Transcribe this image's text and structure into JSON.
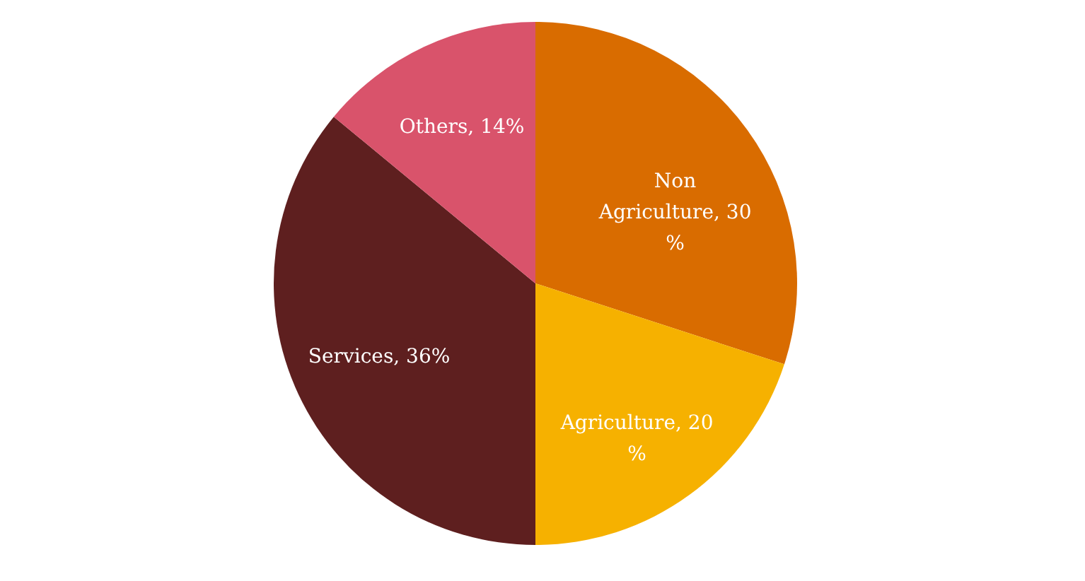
{
  "chart_data": {
    "type": "pie",
    "categories": [
      "Non Agriculture",
      "Agriculture",
      "Services",
      "Others"
    ],
    "values": [
      30,
      20,
      36,
      14
    ],
    "value_labels": [
      "30 %",
      "20 %",
      "36%",
      "14%"
    ],
    "colors": [
      "#d96c00",
      "#f6b100",
      "#5e1f1f",
      "#d9536b"
    ],
    "legend": false
  }
}
